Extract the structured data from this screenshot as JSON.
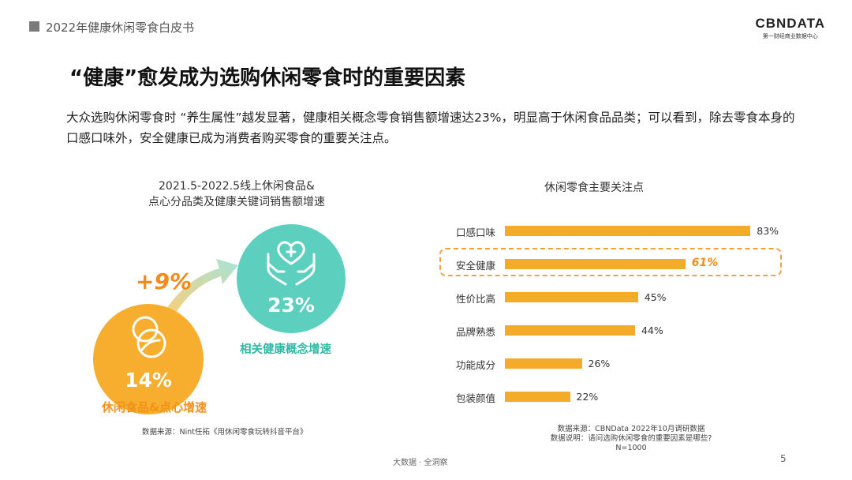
{
  "header": {
    "section": "2022年健康休闲零食白皮书",
    "logo_main": "CBNDATA",
    "logo_sub": "第一财经商业数据中心"
  },
  "title": "“健康”愈发成为选购休闲零食时的重要因素",
  "description": "大众选购休闲零食时 “养生属性”越发显著，健康相关概念零食销售额增速达23%，明显高于休闲食品品类；可以看到，除去零食本身的口感口味外，安全健康已成为消费者购买零食的重要关注点。",
  "left_panel": {
    "title_line1": "2021.5-2022.5线上休闲食品&",
    "title_line2": "点心分品类及健康关键词销售额增速",
    "circle_small_value": "14%",
    "circle_small_label": "休闲食品&点心增速",
    "circle_big_value": "23%",
    "circle_big_label": "相关健康概念增速",
    "difference": "+9%",
    "source": "数据来源：Nint任拓《用休闲零食玩转抖音平台》",
    "colors": {
      "orange": "#f7ad2d",
      "teal": "#5dcfbe"
    }
  },
  "right_panel": {
    "source_line1": "数据来源：CBNData 2022年10月调研数据",
    "source_line2": "数据说明：请问选购休闲零食的重要因素是哪些?",
    "source_line3": "N=1000"
  },
  "chart_data": {
    "type": "bar",
    "orientation": "horizontal",
    "title": "休闲零食主要关注点",
    "categories": [
      "口感口味",
      "安全健康",
      "性价比高",
      "品牌熟悉",
      "功能成分",
      "包装颜值"
    ],
    "values": [
      83,
      61,
      45,
      44,
      26,
      22
    ],
    "value_labels": [
      "83%",
      "61%",
      "45%",
      "44%",
      "26%",
      "22%"
    ],
    "highlighted_category": "安全健康",
    "xlim": [
      0,
      100
    ],
    "bar_color": "#f4ab2a",
    "highlight_color": "#f08c1a",
    "grid": false
  },
  "footer": {
    "tag": "大数据 · 全洞察",
    "page": "5"
  }
}
